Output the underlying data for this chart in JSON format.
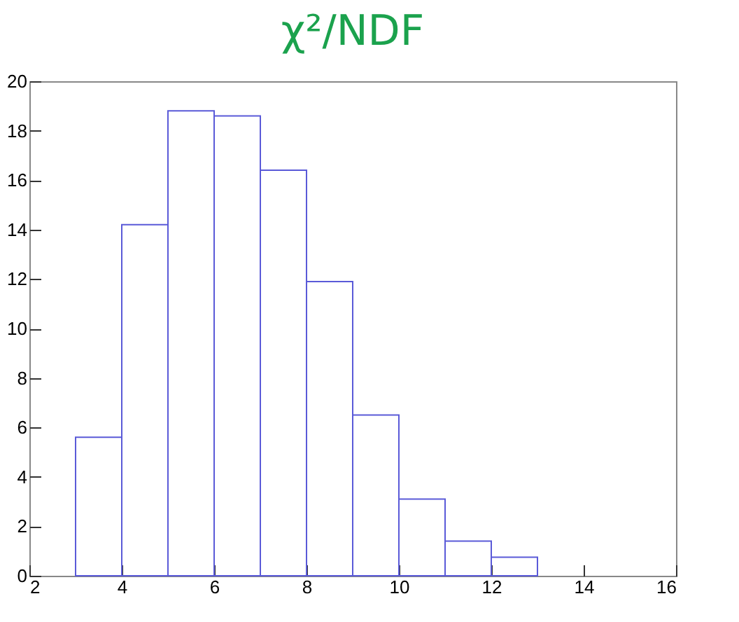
{
  "chart_data": {
    "type": "histogram",
    "title": "χ²/NDF",
    "bins": [
      3,
      4,
      5,
      6,
      7,
      8,
      9,
      10,
      11,
      12,
      13
    ],
    "values": [
      5.6,
      14.2,
      18.8,
      18.6,
      16.4,
      11.9,
      6.5,
      3.1,
      1.4,
      0.75
    ],
    "color": "#5a5ad8",
    "xlim": [
      2,
      16
    ],
    "xticks": [
      2,
      4,
      6,
      8,
      10,
      12,
      14,
      16
    ],
    "ylim": [
      0,
      20
    ],
    "yticks": [
      0,
      2,
      4,
      6,
      8,
      10,
      12,
      14,
      16,
      18,
      20
    ],
    "grid": false
  }
}
